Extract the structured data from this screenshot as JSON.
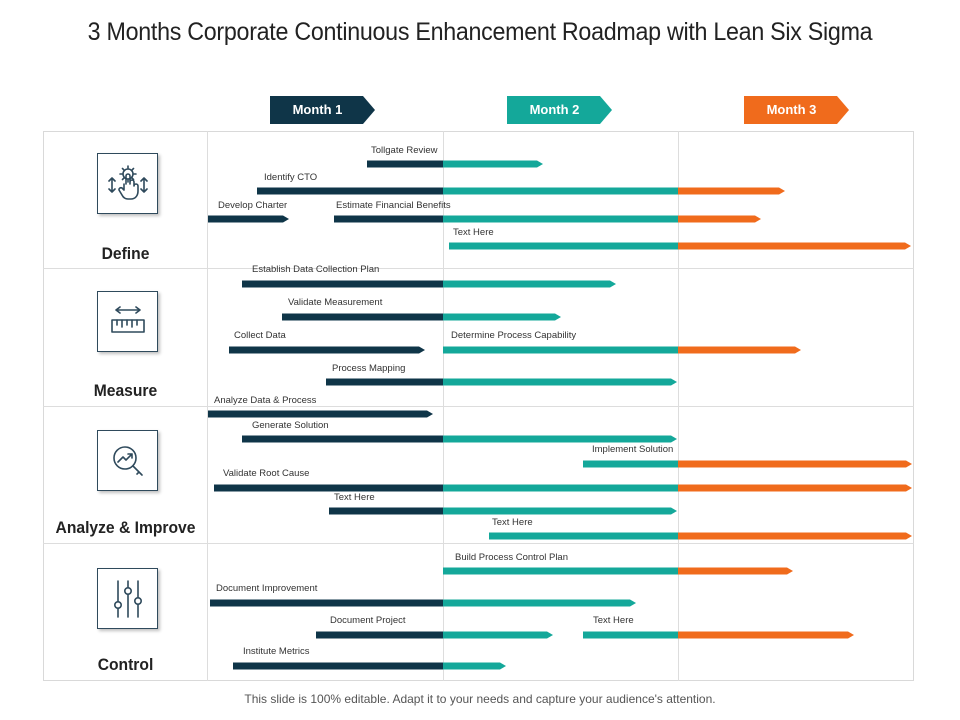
{
  "title": "3 Months Corporate Continuous Enhancement Roadmap with Lean Six Sigma",
  "months": [
    {
      "label": "Month 1",
      "color": "#0f3548"
    },
    {
      "label": "Month 2",
      "color": "#14a89a"
    },
    {
      "label": "Month 3",
      "color": "#f06b1c"
    }
  ],
  "categories": [
    {
      "label": "Define",
      "icon": "gear-touch-icon"
    },
    {
      "label": "Measure",
      "icon": "ruler-icon"
    },
    {
      "label": "Analyze & Improve",
      "icon": "magnifier-chart-icon"
    },
    {
      "label": "Control",
      "icon": "sliders-icon"
    }
  ],
  "tasks": [
    {
      "label": "Tollgate Review"
    },
    {
      "label": "Identify CTO"
    },
    {
      "label": "Develop Charter"
    },
    {
      "label": "Estimate Financial Benefits"
    },
    {
      "label": "Text Here"
    },
    {
      "label": "Establish Data Collection Plan"
    },
    {
      "label": "Validate Measurement"
    },
    {
      "label": "Collect Data"
    },
    {
      "label": "Determine Process Capability"
    },
    {
      "label": "Process Mapping"
    },
    {
      "label": "Analyze Data & Process"
    },
    {
      "label": "Generate Solution"
    },
    {
      "label": "Implement Solution"
    },
    {
      "label": "Validate Root Cause"
    },
    {
      "label": "Text Here"
    },
    {
      "label": "Text Here"
    },
    {
      "label": "Build Process Control Plan"
    },
    {
      "label": "Document Improvement"
    },
    {
      "label": "Document Project"
    },
    {
      "label": "Text Here"
    },
    {
      "label": "Institute Metrics"
    }
  ],
  "footer": "This slide is 100% editable. Adapt it to your needs and capture your audience's attention."
}
